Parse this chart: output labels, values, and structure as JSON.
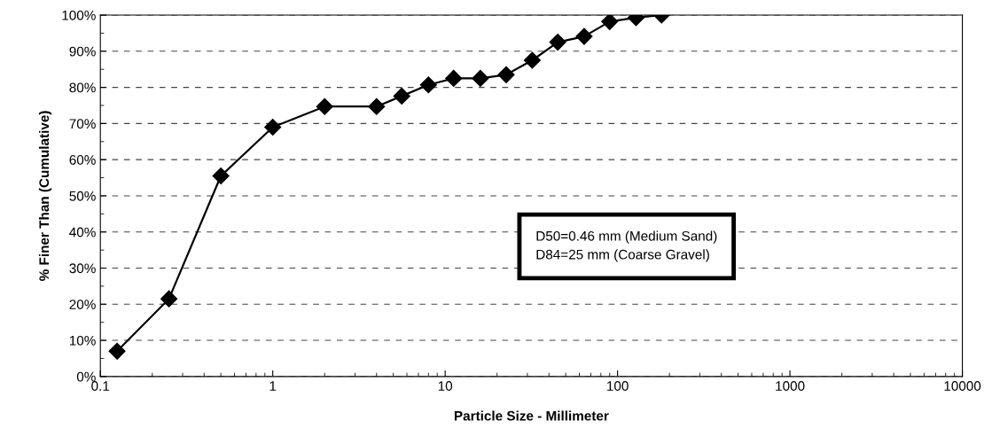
{
  "chart_data": {
    "type": "line",
    "xlabel": "Particle Size - Millimeter",
    "ylabel": "% Finer Than (Cumulative)",
    "x": [
      0.125,
      0.25,
      0.5,
      1,
      2,
      4,
      5.6,
      8,
      11.2,
      16,
      22.6,
      32,
      45,
      64,
      90,
      128,
      180
    ],
    "series": [
      {
        "color": "#000000",
        "values": [
          7,
          21.5,
          55.5,
          69,
          74.7,
          74.7,
          77.6,
          80.7,
          82.5,
          82.5,
          83.5,
          87.5,
          92.5,
          94.1,
          98.2,
          99.3,
          100
        ]
      }
    ],
    "log": "x",
    "xlim": [
      0.1,
      10000
    ],
    "xticks": [
      0.1,
      1,
      10,
      100,
      1000,
      10000
    ],
    "ylim": [
      0,
      100
    ],
    "yticks": [
      {
        "value": 0,
        "label": "0%"
      },
      {
        "value": 10,
        "label": "10%"
      },
      {
        "value": 20,
        "label": "20%"
      },
      {
        "value": 30,
        "label": "30%"
      },
      {
        "value": 40,
        "label": "40%"
      },
      {
        "value": 50,
        "label": "50%"
      },
      {
        "value": 60,
        "label": "60%"
      },
      {
        "value": 70,
        "label": "70%"
      },
      {
        "value": 80,
        "label": "80%"
      },
      {
        "value": 90,
        "label": "90%"
      },
      {
        "value": 100,
        "label": "100%"
      }
    ],
    "grid": "y",
    "marker": "diamond",
    "line_style": "solid",
    "annotations": [
      "D50=0.46 mm (Medium Sand)\nD84=25 mm (Coarse Gravel)"
    ]
  }
}
